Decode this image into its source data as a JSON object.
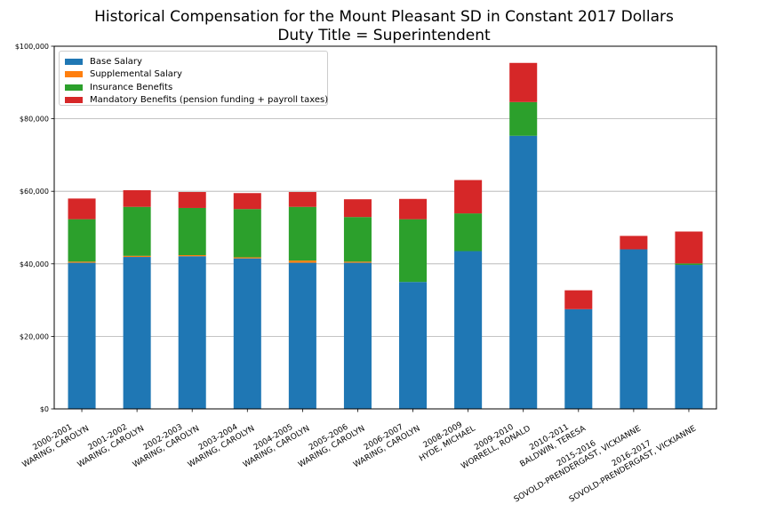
{
  "chart_data": {
    "type": "bar",
    "stacked": true,
    "title": "Historical Compensation for the Mount Pleasant SD in Constant 2017 Dollars",
    "subtitle": "Duty Title = Superintendent",
    "xlabel": "",
    "ylabel": "",
    "ylim": [
      0,
      100000
    ],
    "yticks": [
      0,
      20000,
      40000,
      60000,
      80000,
      100000
    ],
    "ytick_labels": [
      "$0",
      "$20,000",
      "$40,000",
      "$60,000",
      "$80,000",
      "$100,000"
    ],
    "grid": "horizontal",
    "legend_position": "top-left",
    "categories": [
      [
        "2000-2001",
        "WARING, CAROLYN"
      ],
      [
        "2001-2002",
        "WARING, CAROLYN"
      ],
      [
        "2002-2003",
        "WARING, CAROLYN"
      ],
      [
        "2003-2004",
        "WARING, CAROLYN"
      ],
      [
        "2004-2005",
        "WARING, CAROLYN"
      ],
      [
        "2005-2006",
        "WARING, CAROLYN"
      ],
      [
        "2006-2007",
        "WARING, CAROLYN"
      ],
      [
        "2008-2009",
        "HYDE, MICHAEL"
      ],
      [
        "2009-2010",
        "WORRELL, RONALD"
      ],
      [
        "2010-2011",
        "BALDWIN, TERESA"
      ],
      [
        "2015-2016",
        "SOVOLD-PRENDERGAST, VICKIANNE"
      ],
      [
        "2016-2017",
        "SOVOLD-PRENDERGAST, VICKIANNE"
      ]
    ],
    "series": [
      {
        "name": "Base Salary",
        "color": "#1f77b4",
        "values": [
          40300,
          41900,
          42100,
          41500,
          40300,
          40300,
          35000,
          43500,
          75300,
          27500,
          44000,
          39700
        ]
      },
      {
        "name": "Supplemental Salary",
        "color": "#ff7f0e",
        "values": [
          300,
          300,
          300,
          300,
          600,
          300,
          0,
          0,
          0,
          0,
          0,
          0
        ]
      },
      {
        "name": "Insurance Benefits",
        "color": "#2ca02c",
        "values": [
          11700,
          13500,
          13000,
          13300,
          14800,
          12300,
          17300,
          10400,
          9300,
          0,
          0,
          400
        ]
      },
      {
        "name": "Mandatory Benefits (pension funding + payroll taxes)",
        "color": "#d62728",
        "values": [
          5700,
          4600,
          4400,
          4400,
          4100,
          4900,
          5600,
          9200,
          10800,
          5200,
          3700,
          8800
        ]
      }
    ]
  }
}
